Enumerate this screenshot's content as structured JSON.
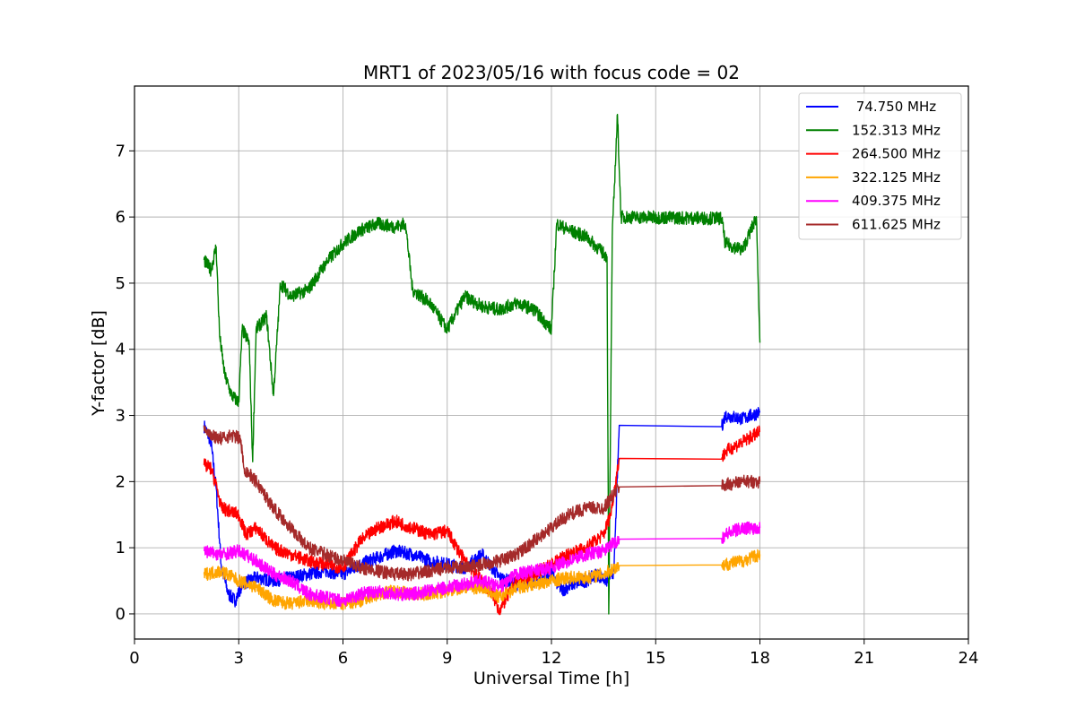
{
  "chart_data": {
    "type": "line",
    "title": "MRT1 of 2023/05/16 with focus code = 02",
    "xlabel": "Universal Time [h]",
    "ylabel": "Y-factor [dB]",
    "xlim": [
      0,
      24
    ],
    "ylim": [
      -0.38,
      7.98
    ],
    "xticks": [
      0,
      3,
      6,
      9,
      12,
      15,
      18,
      21,
      24
    ],
    "yticks": [
      0,
      1,
      2,
      3,
      4,
      5,
      6,
      7
    ],
    "grid": true,
    "legend_position": "top-right",
    "series": [
      {
        "name": " 74.750 MHz",
        "color": "#0000ff",
        "points": [
          [
            2.0,
            2.85
          ],
          [
            2.2,
            2.6
          ],
          [
            2.35,
            1.9
          ],
          [
            2.5,
            0.7
          ],
          [
            2.7,
            0.3
          ],
          [
            2.9,
            0.2
          ],
          [
            3.1,
            0.45
          ],
          [
            3.5,
            0.55
          ],
          [
            4.0,
            0.5
          ],
          [
            4.5,
            0.55
          ],
          [
            5.0,
            0.6
          ],
          [
            5.5,
            0.65
          ],
          [
            6.0,
            0.6
          ],
          [
            6.5,
            0.75
          ],
          [
            7.0,
            0.85
          ],
          [
            7.5,
            0.95
          ],
          [
            8.0,
            0.9
          ],
          [
            8.5,
            0.8
          ],
          [
            9.0,
            0.75
          ],
          [
            9.5,
            0.7
          ],
          [
            10.0,
            0.9
          ],
          [
            10.5,
            0.55
          ],
          [
            11.0,
            0.45
          ],
          [
            11.5,
            0.5
          ],
          [
            12.0,
            0.6
          ],
          [
            12.3,
            0.35
          ],
          [
            12.6,
            0.45
          ],
          [
            13.0,
            0.5
          ],
          [
            13.3,
            0.6
          ],
          [
            13.6,
            0.5
          ],
          [
            13.8,
            0.65
          ],
          [
            13.95,
            2.85
          ],
          [
            16.9,
            2.83
          ],
          [
            17.0,
            3.0
          ],
          [
            17.5,
            2.95
          ],
          [
            18.0,
            3.05
          ]
        ],
        "gaps": [
          [
            14.0,
            16.85
          ]
        ]
      },
      {
        "name": "152.313 MHz",
        "color": "#008000",
        "points": [
          [
            2.0,
            5.35
          ],
          [
            2.2,
            5.2
          ],
          [
            2.35,
            5.55
          ],
          [
            2.45,
            4.2
          ],
          [
            2.6,
            3.6
          ],
          [
            2.8,
            3.3
          ],
          [
            3.0,
            3.2
          ],
          [
            3.1,
            4.3
          ],
          [
            3.3,
            4.1
          ],
          [
            3.4,
            2.3
          ],
          [
            3.5,
            4.3
          ],
          [
            3.8,
            4.5
          ],
          [
            4.0,
            3.3
          ],
          [
            4.2,
            5.0
          ],
          [
            4.5,
            4.8
          ],
          [
            5.0,
            4.9
          ],
          [
            5.5,
            5.3
          ],
          [
            6.0,
            5.6
          ],
          [
            6.5,
            5.8
          ],
          [
            7.0,
            5.9
          ],
          [
            7.5,
            5.85
          ],
          [
            7.8,
            5.9
          ],
          [
            8.0,
            4.9
          ],
          [
            8.5,
            4.7
          ],
          [
            9.0,
            4.3
          ],
          [
            9.5,
            4.8
          ],
          [
            10.0,
            4.65
          ],
          [
            10.5,
            4.6
          ],
          [
            11.0,
            4.7
          ],
          [
            11.5,
            4.6
          ],
          [
            12.0,
            4.3
          ],
          [
            12.15,
            5.9
          ],
          [
            12.5,
            5.8
          ],
          [
            13.0,
            5.7
          ],
          [
            13.4,
            5.5
          ],
          [
            13.6,
            5.4
          ],
          [
            13.65,
            0.0
          ],
          [
            13.75,
            5.7
          ],
          [
            13.9,
            7.55
          ],
          [
            14.0,
            6.0
          ],
          [
            16.9,
            5.98
          ],
          [
            17.0,
            5.6
          ],
          [
            17.5,
            5.5
          ],
          [
            17.9,
            6.0
          ],
          [
            18.0,
            4.1
          ]
        ],
        "gaps": []
      },
      {
        "name": "264.500 MHz",
        "color": "#ff0000",
        "points": [
          [
            2.0,
            2.25
          ],
          [
            2.2,
            2.2
          ],
          [
            2.35,
            1.95
          ],
          [
            2.5,
            1.6
          ],
          [
            3.0,
            1.5
          ],
          [
            3.2,
            1.2
          ],
          [
            3.5,
            1.3
          ],
          [
            4.0,
            1.0
          ],
          [
            4.5,
            0.9
          ],
          [
            5.0,
            0.8
          ],
          [
            5.5,
            0.75
          ],
          [
            6.0,
            0.7
          ],
          [
            6.5,
            1.1
          ],
          [
            7.0,
            1.3
          ],
          [
            7.5,
            1.4
          ],
          [
            8.0,
            1.3
          ],
          [
            8.5,
            1.2
          ],
          [
            9.0,
            1.25
          ],
          [
            9.5,
            0.8
          ],
          [
            10.0,
            0.5
          ],
          [
            10.3,
            0.3
          ],
          [
            10.5,
            0.05
          ],
          [
            11.0,
            0.5
          ],
          [
            11.5,
            0.6
          ],
          [
            12.0,
            0.75
          ],
          [
            12.5,
            0.9
          ],
          [
            13.0,
            1.0
          ],
          [
            13.5,
            1.2
          ],
          [
            13.7,
            1.5
          ],
          [
            13.95,
            2.35
          ],
          [
            16.9,
            2.34
          ],
          [
            17.0,
            2.45
          ],
          [
            17.5,
            2.6
          ],
          [
            18.0,
            2.75
          ]
        ],
        "gaps": [
          [
            14.0,
            16.85
          ]
        ]
      },
      {
        "name": "322.125 MHz",
        "color": "#ffa500",
        "points": [
          [
            2.0,
            0.6
          ],
          [
            2.5,
            0.65
          ],
          [
            3.0,
            0.5
          ],
          [
            3.5,
            0.4
          ],
          [
            4.0,
            0.2
          ],
          [
            4.5,
            0.15
          ],
          [
            5.0,
            0.2
          ],
          [
            5.5,
            0.15
          ],
          [
            6.0,
            0.15
          ],
          [
            6.5,
            0.2
          ],
          [
            7.0,
            0.3
          ],
          [
            7.5,
            0.35
          ],
          [
            8.0,
            0.3
          ],
          [
            8.5,
            0.3
          ],
          [
            9.0,
            0.35
          ],
          [
            9.5,
            0.4
          ],
          [
            10.0,
            0.4
          ],
          [
            10.5,
            0.25
          ],
          [
            11.0,
            0.4
          ],
          [
            11.5,
            0.45
          ],
          [
            12.0,
            0.5
          ],
          [
            12.5,
            0.55
          ],
          [
            13.0,
            0.55
          ],
          [
            13.5,
            0.6
          ],
          [
            13.95,
            0.73
          ],
          [
            16.9,
            0.74
          ],
          [
            17.0,
            0.75
          ],
          [
            17.5,
            0.8
          ],
          [
            18.0,
            0.9
          ]
        ],
        "gaps": [
          [
            14.0,
            16.85
          ]
        ]
      },
      {
        "name": "409.375 MHz",
        "color": "#ff00ff",
        "points": [
          [
            2.0,
            0.95
          ],
          [
            2.5,
            0.9
          ],
          [
            3.0,
            0.95
          ],
          [
            3.5,
            0.8
          ],
          [
            4.0,
            0.6
          ],
          [
            4.5,
            0.5
          ],
          [
            5.0,
            0.3
          ],
          [
            5.5,
            0.25
          ],
          [
            6.0,
            0.2
          ],
          [
            6.5,
            0.3
          ],
          [
            7.0,
            0.35
          ],
          [
            7.5,
            0.3
          ],
          [
            8.0,
            0.3
          ],
          [
            8.5,
            0.35
          ],
          [
            9.0,
            0.4
          ],
          [
            9.5,
            0.45
          ],
          [
            10.0,
            0.5
          ],
          [
            10.5,
            0.4
          ],
          [
            11.0,
            0.6
          ],
          [
            11.5,
            0.65
          ],
          [
            12.0,
            0.7
          ],
          [
            12.5,
            0.8
          ],
          [
            13.0,
            0.9
          ],
          [
            13.5,
            0.95
          ],
          [
            13.95,
            1.13
          ],
          [
            16.9,
            1.14
          ],
          [
            17.0,
            1.2
          ],
          [
            17.5,
            1.3
          ],
          [
            18.0,
            1.3
          ]
        ],
        "gaps": [
          [
            14.0,
            16.85
          ]
        ]
      },
      {
        "name": "611.625 MHz",
        "color": "#a52a2a",
        "points": [
          [
            2.0,
            2.85
          ],
          [
            2.2,
            2.7
          ],
          [
            2.5,
            2.65
          ],
          [
            2.8,
            2.7
          ],
          [
            3.05,
            2.65
          ],
          [
            3.15,
            2.2
          ],
          [
            3.5,
            2.0
          ],
          [
            4.0,
            1.6
          ],
          [
            4.5,
            1.3
          ],
          [
            5.0,
            1.0
          ],
          [
            5.5,
            0.9
          ],
          [
            6.0,
            0.8
          ],
          [
            6.5,
            0.7
          ],
          [
            7.0,
            0.65
          ],
          [
            7.5,
            0.6
          ],
          [
            8.0,
            0.6
          ],
          [
            8.5,
            0.65
          ],
          [
            9.0,
            0.7
          ],
          [
            9.5,
            0.7
          ],
          [
            10.0,
            0.75
          ],
          [
            10.5,
            0.8
          ],
          [
            11.0,
            0.9
          ],
          [
            11.5,
            1.1
          ],
          [
            12.0,
            1.3
          ],
          [
            12.5,
            1.5
          ],
          [
            13.0,
            1.6
          ],
          [
            13.5,
            1.6
          ],
          [
            13.95,
            1.92
          ],
          [
            16.9,
            1.94
          ],
          [
            17.0,
            1.95
          ],
          [
            17.5,
            2.0
          ],
          [
            18.0,
            2.0
          ]
        ],
        "gaps": [
          [
            14.0,
            16.85
          ]
        ]
      }
    ]
  }
}
